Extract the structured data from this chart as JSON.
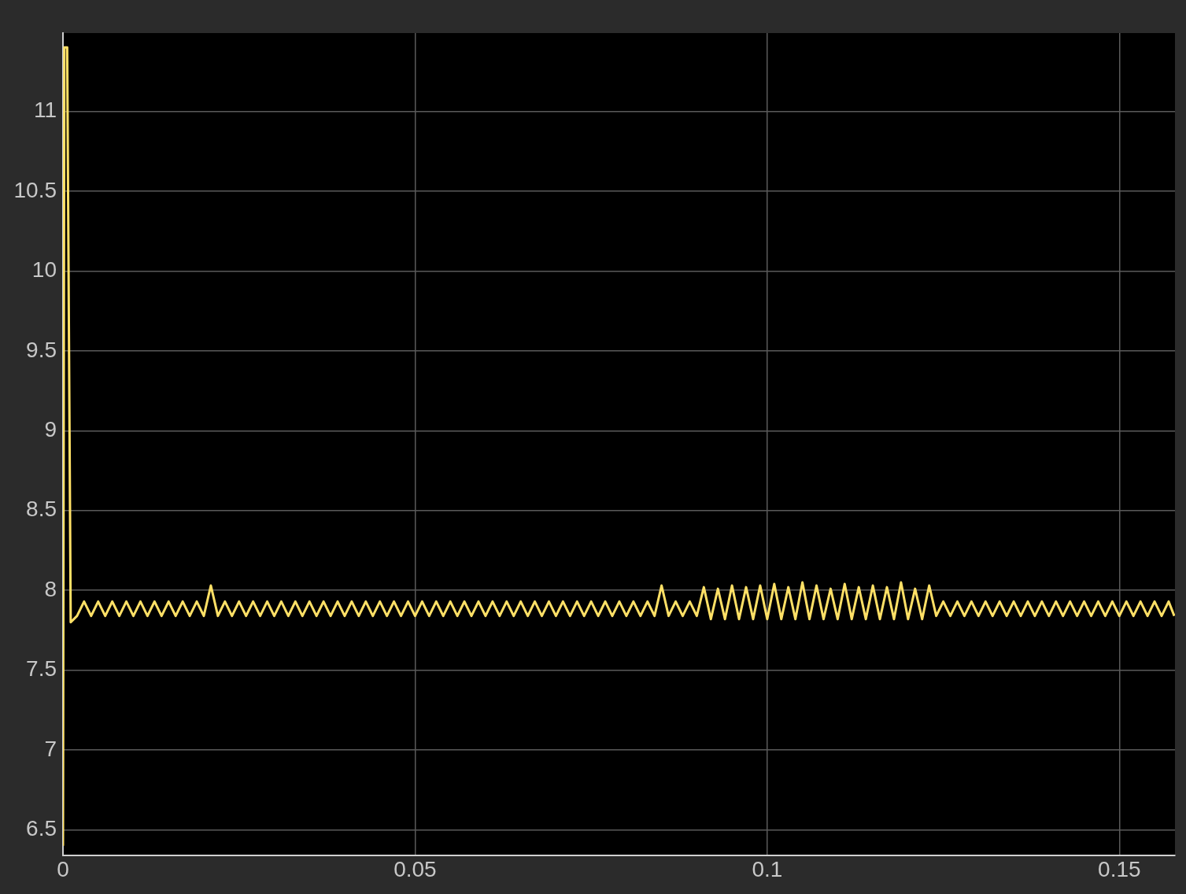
{
  "chart_data": {
    "type": "line",
    "color": "#ffe066",
    "grid": true,
    "xlim": [
      0,
      0.1579
    ],
    "xticks": [
      0,
      0.05,
      0.1,
      0.15
    ],
    "ylim": [
      6.34,
      11.49
    ],
    "yticks": [
      6.5,
      7,
      7.5,
      8,
      8.5,
      9,
      9.5,
      10,
      10.5,
      11
    ],
    "x": [
      0,
      0.0002,
      0.0006,
      0.0011,
      0.002,
      0.003,
      0.004,
      0.005,
      0.006,
      0.007,
      0.008,
      0.009,
      0.01,
      0.011,
      0.012,
      0.013,
      0.014,
      0.015,
      0.016,
      0.017,
      0.018,
      0.019,
      0.02,
      0.021,
      0.022,
      0.023,
      0.024,
      0.025,
      0.026,
      0.027,
      0.028,
      0.029,
      0.03,
      0.031,
      0.032,
      0.033,
      0.034,
      0.035,
      0.036,
      0.037,
      0.038,
      0.039,
      0.04,
      0.041,
      0.042,
      0.043,
      0.044,
      0.045,
      0.046,
      0.047,
      0.048,
      0.049,
      0.05,
      0.051,
      0.052,
      0.053,
      0.054,
      0.055,
      0.056,
      0.057,
      0.058,
      0.059,
      0.06,
      0.061,
      0.062,
      0.063,
      0.064,
      0.065,
      0.066,
      0.067,
      0.068,
      0.069,
      0.07,
      0.071,
      0.072,
      0.073,
      0.074,
      0.075,
      0.076,
      0.077,
      0.078,
      0.079,
      0.08,
      0.081,
      0.082,
      0.083,
      0.084,
      0.085,
      0.086,
      0.087,
      0.088,
      0.089,
      0.09,
      0.091,
      0.092,
      0.093,
      0.094,
      0.095,
      0.096,
      0.097,
      0.098,
      0.099,
      0.1,
      0.101,
      0.102,
      0.103,
      0.104,
      0.105,
      0.106,
      0.107,
      0.108,
      0.109,
      0.11,
      0.111,
      0.112,
      0.113,
      0.114,
      0.115,
      0.116,
      0.117,
      0.118,
      0.119,
      0.12,
      0.121,
      0.122,
      0.123,
      0.124,
      0.125,
      0.126,
      0.127,
      0.128,
      0.129,
      0.13,
      0.131,
      0.132,
      0.133,
      0.134,
      0.135,
      0.136,
      0.137,
      0.138,
      0.139,
      0.14,
      0.141,
      0.142,
      0.143,
      0.144,
      0.145,
      0.146,
      0.147,
      0.148,
      0.149,
      0.15,
      0.151,
      0.152,
      0.153,
      0.154,
      0.155,
      0.156,
      0.157,
      0.1578
    ],
    "values": [
      6.4,
      11.4,
      11.4,
      7.8,
      7.84,
      7.93,
      7.84,
      7.93,
      7.84,
      7.93,
      7.84,
      7.93,
      7.84,
      7.93,
      7.84,
      7.93,
      7.84,
      7.93,
      7.84,
      7.93,
      7.84,
      7.93,
      7.84,
      8.03,
      7.84,
      7.93,
      7.84,
      7.93,
      7.84,
      7.93,
      7.84,
      7.93,
      7.84,
      7.93,
      7.84,
      7.93,
      7.84,
      7.93,
      7.84,
      7.93,
      7.84,
      7.93,
      7.84,
      7.93,
      7.84,
      7.93,
      7.84,
      7.93,
      7.84,
      7.93,
      7.84,
      7.93,
      7.84,
      7.93,
      7.84,
      7.93,
      7.84,
      7.93,
      7.84,
      7.93,
      7.84,
      7.93,
      7.84,
      7.93,
      7.84,
      7.93,
      7.84,
      7.93,
      7.84,
      7.93,
      7.84,
      7.93,
      7.84,
      7.93,
      7.84,
      7.93,
      7.84,
      7.93,
      7.84,
      7.93,
      7.84,
      7.93,
      7.84,
      7.93,
      7.84,
      7.93,
      7.84,
      8.03,
      7.84,
      7.93,
      7.84,
      7.93,
      7.84,
      8.02,
      7.82,
      8.01,
      7.82,
      8.03,
      7.82,
      8.02,
      7.82,
      8.03,
      7.82,
      8.04,
      7.82,
      8.02,
      7.82,
      8.05,
      7.82,
      8.03,
      7.82,
      8.01,
      7.82,
      8.04,
      7.82,
      8.02,
      7.82,
      8.03,
      7.82,
      8.02,
      7.82,
      8.05,
      7.82,
      8.01,
      7.82,
      8.03,
      7.84,
      7.93,
      7.84,
      7.93,
      7.84,
      7.93,
      7.84,
      7.93,
      7.84,
      7.93,
      7.84,
      7.93,
      7.84,
      7.93,
      7.84,
      7.93,
      7.84,
      7.93,
      7.84,
      7.93,
      7.84,
      7.93,
      7.84,
      7.93,
      7.84,
      7.93,
      7.84,
      7.93,
      7.84,
      7.93,
      7.84,
      7.93,
      7.84,
      7.93,
      7.84
    ]
  }
}
